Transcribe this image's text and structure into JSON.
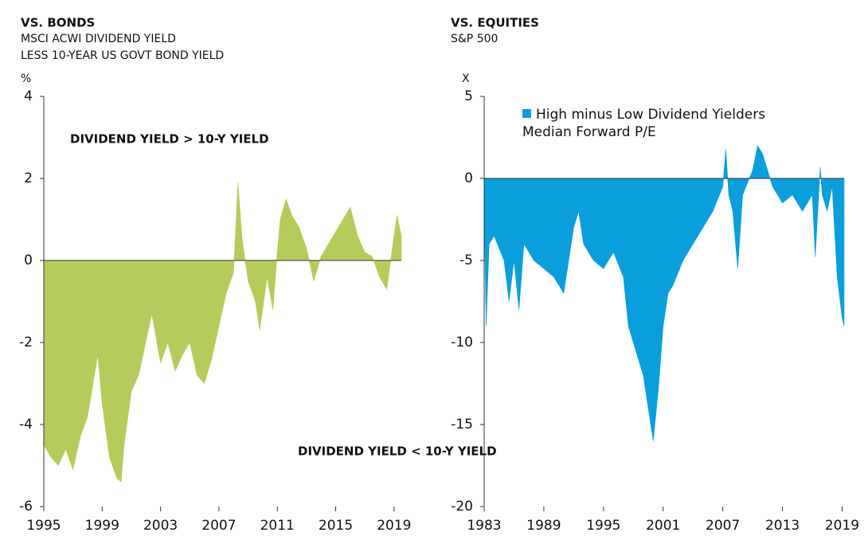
{
  "chart_data": [
    {
      "type": "area",
      "title": "VS. BONDS",
      "subtitle": [
        "MSCI ACWI DIVIDEND YIELD",
        "LESS 10-YEAR US GOVT BOND YIELD"
      ],
      "ylabel": "%",
      "annotations": [
        "DIVIDEND YIELD > 10-Y YIELD",
        "DIVIDEND YIELD < 10-Y YIELD"
      ],
      "xlim": [
        1995,
        2019.5
      ],
      "xticks": [
        1995,
        1999,
        2003,
        2007,
        2011,
        2015,
        2019
      ],
      "ylim": [
        -6,
        4
      ],
      "yticks": [
        -6,
        -4,
        -2,
        0,
        2,
        4
      ],
      "x": [
        1995,
        1995.5,
        1996,
        1996.5,
        1997,
        1997.5,
        1998,
        1998.7,
        1999,
        1999.5,
        2000,
        2000.3,
        2000.5,
        2001,
        2001.5,
        2002.4,
        2003,
        2003.5,
        2004,
        2004.5,
        2005,
        2005.5,
        2006,
        2006.5,
        2007,
        2007.5,
        2008,
        2008.3,
        2008.6,
        2009,
        2009.5,
        2009.8,
        2010.3,
        2010.7,
        2011,
        2011.2,
        2011.6,
        2012,
        2012.5,
        2013,
        2013.5,
        2014,
        2014.5,
        2015,
        2015.5,
        2016,
        2016.5,
        2017,
        2017.5,
        2018,
        2018.5,
        2019,
        2019.2,
        2019.5
      ],
      "series": [
        {
          "color": "#b5cc5c",
          "values": [
            -4.5,
            -4.8,
            -5.0,
            -4.6,
            -5.1,
            -4.3,
            -3.8,
            -2.3,
            -3.5,
            -4.8,
            -5.3,
            -5.4,
            -4.5,
            -3.2,
            -2.8,
            -1.3,
            -2.5,
            -2.0,
            -2.7,
            -2.3,
            -2.0,
            -2.8,
            -3.0,
            -2.4,
            -1.6,
            -0.8,
            -0.3,
            1.9,
            0.5,
            -0.5,
            -1.0,
            -1.7,
            -0.4,
            -1.2,
            0.2,
            1.0,
            1.5,
            1.1,
            0.8,
            0.3,
            -0.5,
            0.1,
            0.4,
            0.7,
            1.0,
            1.3,
            0.6,
            0.2,
            0.1,
            -0.4,
            -0.7,
            0.6,
            1.1,
            0.6
          ]
        }
      ]
    },
    {
      "type": "area",
      "title": "VS. EQUITIES",
      "subtitle": [
        "S&P 500"
      ],
      "ylabel": "X",
      "xlim": [
        1983,
        2019.2
      ],
      "xticks": [
        1983,
        1989,
        1995,
        2001,
        2007,
        2013,
        2019
      ],
      "ylim": [
        -20,
        5
      ],
      "yticks": [
        -20,
        -15,
        -10,
        -5,
        0,
        5
      ],
      "x": [
        1983,
        1983.2,
        1983.5,
        1984,
        1985,
        1985.5,
        1986,
        1986.5,
        1987,
        1988,
        1989,
        1990,
        1991,
        1991.5,
        1992,
        1992.5,
        1993,
        1994,
        1995,
        1996,
        1997,
        1997.5,
        1998,
        1999,
        1999.5,
        2000,
        2000.5,
        2001,
        2001.5,
        2002,
        2003,
        2004,
        2005,
        2006,
        2007,
        2007.3,
        2007.6,
        2008,
        2008.5,
        2009,
        2010,
        2010.5,
        2011,
        2011.5,
        2012,
        2012.5,
        2013,
        2014,
        2015,
        2016,
        2016.3,
        2016.8,
        2017,
        2017.5,
        2018,
        2018.5,
        2019,
        2019.2
      ],
      "series": [
        {
          "name": "High minus Low Dividend Yielders Median Forward P/E",
          "color": "#0a9fdc",
          "values": [
            -2,
            -9,
            -4,
            -3.5,
            -5,
            -7.5,
            -5,
            -8,
            -4,
            -5,
            -5.5,
            -6,
            -7,
            -5,
            -3,
            -2,
            -4,
            -5,
            -5.5,
            -4.5,
            -6,
            -9,
            -10,
            -12,
            -14,
            -16,
            -13,
            -9,
            -7,
            -6.5,
            -5,
            -4,
            -3,
            -2,
            -0.5,
            1.8,
            -1,
            -2,
            -5.5,
            -1,
            0.5,
            2,
            1.5,
            0.5,
            -0.5,
            -1,
            -1.5,
            -1,
            -2,
            -1,
            -4.8,
            0.7,
            -1,
            -2,
            -0.5,
            -6,
            -8.5,
            -9
          ]
        }
      ]
    }
  ]
}
